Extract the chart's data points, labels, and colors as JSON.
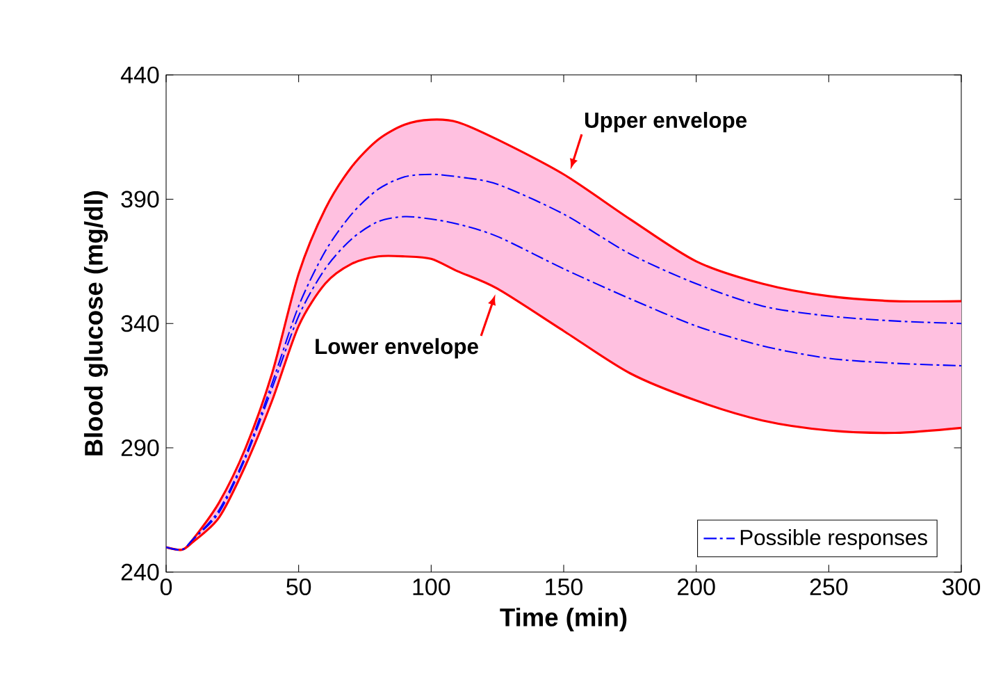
{
  "chart_data": {
    "type": "line",
    "xlabel": "Time (min)",
    "ylabel": "Blood glucose (mg/dl)",
    "x": [
      0,
      6,
      10,
      20,
      30,
      40,
      50,
      60,
      70,
      80,
      90,
      100,
      110,
      125,
      150,
      175,
      200,
      225,
      250,
      275,
      300
    ],
    "series": [
      {
        "color": "#ff0000",
        "line_style": "solid",
        "values": [
          250,
          249,
          253,
          268,
          290,
          320,
          360,
          386,
          403,
          414,
          420,
          422,
          421,
          414,
          400,
          382,
          365,
          356,
          351,
          349,
          349
        ]
      },
      {
        "color": "#ff0000",
        "line_style": "solid",
        "values": [
          250,
          249,
          252,
          262,
          283,
          309,
          339,
          356,
          364,
          367,
          367,
          366,
          361,
          354,
          337,
          320,
          309,
          301,
          297,
          296,
          298
        ]
      },
      {
        "name": "Possible responses",
        "color": "#0000ff",
        "line_style": "dashed",
        "values": [
          250,
          249,
          253,
          265,
          287,
          316,
          347,
          369,
          384,
          394,
          399,
          400,
          399,
          396,
          384,
          368,
          356,
          347,
          343,
          341,
          340
        ]
      },
      {
        "color": "#0000ff",
        "line_style": "dashed",
        "values": [
          250,
          249,
          253,
          264,
          286,
          314,
          343,
          362,
          374,
          381,
          383,
          382,
          380,
          375,
          362,
          350,
          339,
          331,
          326,
          324,
          323
        ]
      }
    ],
    "xlim": [
      0,
      300
    ],
    "ylim": [
      240,
      440
    ],
    "xticks": [
      0,
      50,
      100,
      150,
      200,
      250,
      300
    ],
    "yticks": [
      240,
      290,
      340,
      390,
      440
    ],
    "grid": false,
    "legend": "bottom right",
    "marker": "none",
    "annotations": [
      {
        "text": "Upper envelope",
        "x": 152,
        "y": 400
      },
      {
        "text": "Lower envelope",
        "x": 125,
        "y": 354
      }
    ]
  }
}
